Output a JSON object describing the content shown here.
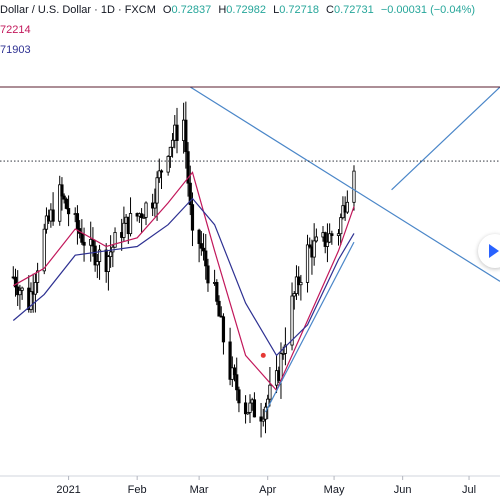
{
  "legend": {
    "symbol": "Dollar / U.S. Dollar · 1D · FXCM",
    "o_label": "O",
    "o_val": "0.72837",
    "h_label": "H",
    "h_val": "0.72982",
    "l_label": "L",
    "l_val": "0.72718",
    "c_label": "C",
    "c_val": "0.72731",
    "change": "−0.00031 (−0.04%)",
    "ma1": "72214",
    "ma2": "71903"
  },
  "colors": {
    "candle": "#000000",
    "ma_fast": "#c2185b",
    "ma_slow": "#2e3192",
    "trendline": "#4a86c8",
    "resistance": "#5a1e2e",
    "marker": "#e53935"
  },
  "navigation": {
    "play_icon": "play-icon"
  },
  "chart_data": {
    "type": "line",
    "instrument": "Dollar / U.S. Dollar",
    "timeframe": "1D",
    "x_tick_labels": [
      "2021",
      "Feb",
      "Mar",
      "Apr",
      "May",
      "Jun",
      "Jul"
    ],
    "x_ticks": [
      "2021-01-01",
      "2021-02-01",
      "2021-03-01",
      "2021-04-01",
      "2021-05-01",
      "2021-06-01",
      "2021-07-01"
    ],
    "xlim": [
      "2020-12-01",
      "2021-07-15"
    ],
    "ylim": [
      0.6938,
      0.7358
    ],
    "current_price_line": 0.7273,
    "ohlc": {
      "open": 0.72837,
      "high": 0.72982,
      "low": 0.72718,
      "close": 0.72731
    },
    "ma_fast_last": 0.72214,
    "ma_slow_last": 0.71903,
    "series": [
      {
        "name": "Close",
        "x": [
          "2020-12-07",
          "2020-12-14",
          "2020-12-21",
          "2020-12-28",
          "2021-01-04",
          "2021-01-11",
          "2021-01-18",
          "2021-01-25",
          "2021-02-01",
          "2021-02-08",
          "2021-02-15",
          "2021-02-22",
          "2021-02-26",
          "2021-03-01",
          "2021-03-08",
          "2021-03-15",
          "2021-03-22",
          "2021-03-29",
          "2021-04-05",
          "2021-04-12",
          "2021-04-19",
          "2021-04-26",
          "2021-05-03",
          "2021-05-10"
        ],
        "y": [
          0.714,
          0.711,
          0.719,
          0.7235,
          0.72,
          0.717,
          0.716,
          0.7195,
          0.721,
          0.723,
          0.729,
          0.732,
          0.718,
          0.718,
          0.712,
          0.703,
          0.699,
          0.6985,
          0.702,
          0.711,
          0.717,
          0.718,
          0.7195,
          0.7273
        ]
      },
      {
        "name": "MA fast",
        "x": [
          "2020-12-07",
          "2020-12-21",
          "2021-01-04",
          "2021-01-18",
          "2021-02-01",
          "2021-02-15",
          "2021-02-26",
          "2021-03-08",
          "2021-03-22",
          "2021-04-05",
          "2021-04-19",
          "2021-05-03",
          "2021-05-10"
        ],
        "y": [
          0.713,
          0.715,
          0.7195,
          0.7175,
          0.7185,
          0.7225,
          0.726,
          0.717,
          0.705,
          0.701,
          0.709,
          0.717,
          0.7221
        ]
      },
      {
        "name": "MA slow",
        "x": [
          "2020-12-07",
          "2020-12-21",
          "2021-01-04",
          "2021-01-18",
          "2021-02-01",
          "2021-02-15",
          "2021-02-26",
          "2021-03-08",
          "2021-03-22",
          "2021-04-05",
          "2021-04-19",
          "2021-05-03",
          "2021-05-10"
        ],
        "y": [
          0.709,
          0.712,
          0.7165,
          0.717,
          0.7175,
          0.72,
          0.723,
          0.72,
          0.711,
          0.705,
          0.7085,
          0.716,
          0.719
        ]
      }
    ],
    "trendlines": [
      {
        "name": "descending",
        "from": [
          "2021-02-25",
          0.7358
        ],
        "to": [
          "2021-07-15",
          0.7135
        ]
      },
      {
        "name": "ascending",
        "from": [
          "2021-03-31",
          0.6985
        ],
        "to": [
          "2021-05-10",
          0.718
        ]
      },
      {
        "name": "ascending-long",
        "from": [
          "2021-05-27",
          0.724
        ],
        "to": [
          "2021-07-15",
          0.7358
        ]
      },
      {
        "name": "resistance",
        "from": [
          "2020-12-01",
          0.7358
        ],
        "to": [
          "2021-07-15",
          0.7358
        ]
      }
    ],
    "marker": {
      "x": "2021-03-30",
      "y": 0.705
    },
    "grid": false,
    "legend_position": "top-left"
  }
}
